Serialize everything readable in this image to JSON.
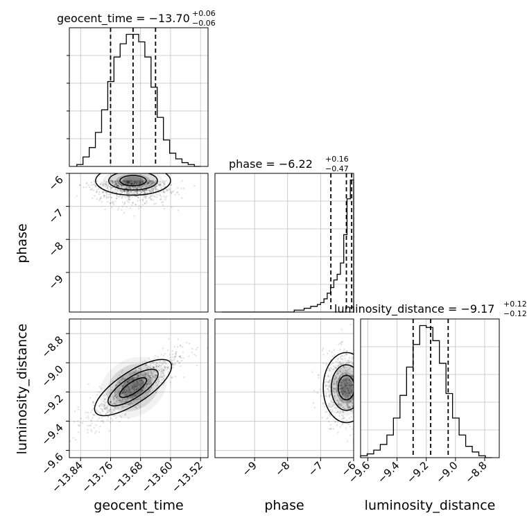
{
  "chart_data": {
    "type": "corner",
    "parameters": [
      "geocent_time",
      "phase",
      "luminosity_distance"
    ],
    "axis_labels": [
      "geocent_time",
      "phase",
      "luminosity_distance"
    ],
    "titles": [
      {
        "param": "geocent_time",
        "prefix": "geocent_time = ",
        "value": "−13.70",
        "plus": "+0.06",
        "minus": "−0.06"
      },
      {
        "param": "phase",
        "prefix": "phase = ",
        "value": "−6.22",
        "plus": "+0.16",
        "minus": "−0.47"
      },
      {
        "param": "luminosity_distance",
        "prefix": "luminosity_distance = ",
        "value": "−9.17",
        "plus": "+0.12",
        "minus": "−0.12"
      }
    ],
    "ranges": {
      "geocent_time": [
        -13.87,
        -13.5
      ],
      "phase": [
        -10.2,
        -6.0
      ],
      "luminosity_distance": [
        -9.65,
        -8.7
      ]
    },
    "ticks": {
      "geocent_time": {
        "values": [
          -13.84,
          -13.76,
          -13.68,
          -13.6,
          -13.52
        ],
        "labels": [
          "−13.84",
          "−13.76",
          "−13.68",
          "−13.60",
          "−13.52"
        ]
      },
      "phase": {
        "values": [
          -9,
          -8,
          -7,
          -6
        ],
        "labels": [
          "−9",
          "−8",
          "−7",
          "−6"
        ]
      },
      "luminosity_distance": {
        "values": [
          -9.6,
          -9.4,
          -9.2,
          -9.0,
          -8.8
        ],
        "labels": [
          "−9.6",
          "−9.4",
          "−9.2",
          "−9.0",
          "−8.8"
        ]
      }
    },
    "quantiles": {
      "geocent_time": [
        -13.76,
        -13.7,
        -13.64
      ],
      "phase": [
        -6.69,
        -6.22,
        -6.06
      ],
      "luminosity_distance": [
        -9.29,
        -9.17,
        -9.05
      ]
    },
    "histograms": {
      "geocent_time": {
        "min": -13.85,
        "max": -13.52,
        "bins": 20,
        "counts": [
          1,
          5,
          10,
          18,
          30,
          45,
          58,
          65,
          70,
          70,
          66,
          58,
          42,
          26,
          14,
          7,
          4,
          2,
          1,
          0
        ]
      },
      "phase": {
        "min": -10.0,
        "max": -6.0,
        "bins": 40,
        "counts": [
          0,
          0,
          0,
          0,
          0,
          0,
          0,
          0,
          0,
          0,
          0,
          0,
          0,
          0,
          0,
          0,
          0,
          0,
          0,
          0,
          0,
          0,
          1,
          1,
          1,
          2,
          2,
          3,
          3,
          4,
          5,
          7,
          10,
          13,
          17,
          20,
          26,
          41,
          60,
          70
        ]
      },
      "luminosity_distance": {
        "min": -9.65,
        "max": -8.75,
        "bins": 20,
        "counts": [
          1,
          2,
          4,
          7,
          12,
          21,
          33,
          48,
          60,
          70,
          69,
          62,
          50,
          34,
          21,
          12,
          6,
          3,
          1,
          0
        ]
      }
    },
    "joint": [
      {
        "x": "geocent_time",
        "y": "phase",
        "mean": [
          -13.7,
          -6.22
        ],
        "sd": [
          0.05,
          0.22
        ],
        "skew_y": "up"
      },
      {
        "x": "geocent_time",
        "y": "luminosity_distance",
        "mean": [
          -13.7,
          -9.17
        ],
        "sd": [
          0.06,
          0.12
        ],
        "corr": 0.85
      },
      {
        "x": "phase",
        "y": "luminosity_distance",
        "mean": [
          -6.22,
          -9.17
        ],
        "sd": [
          0.35,
          0.12
        ],
        "corr": 0.0
      }
    ],
    "grid": true,
    "hist_step": true
  }
}
